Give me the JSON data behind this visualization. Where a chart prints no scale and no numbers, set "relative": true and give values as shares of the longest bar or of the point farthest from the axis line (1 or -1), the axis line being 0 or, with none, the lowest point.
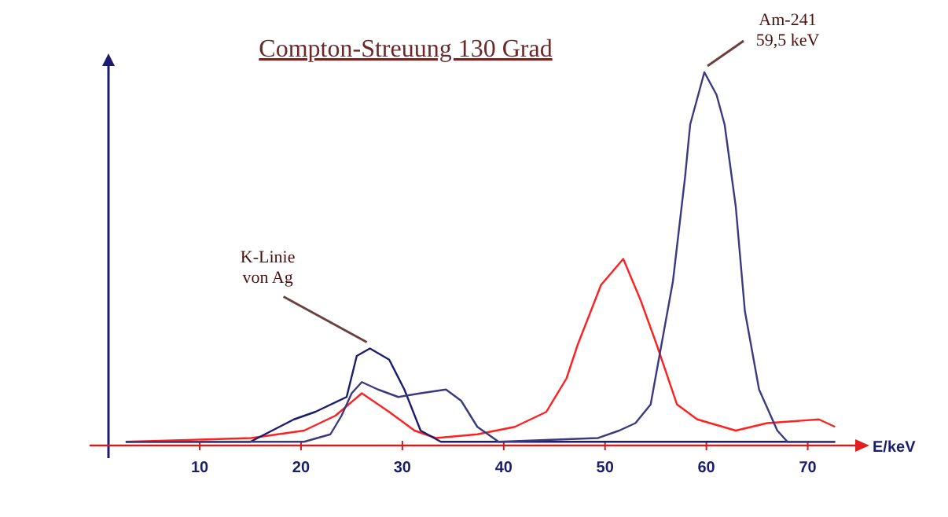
{
  "chart_data": {
    "type": "line",
    "title": "Compton-Streuung 130 Grad",
    "xlabel": "E/keV",
    "relative": true,
    "xlim": [
      1,
      75
    ],
    "xticks": [
      10,
      20,
      30,
      40,
      50,
      60,
      70
    ],
    "annotations": [
      {
        "text": "K-Linie\nvon Ag",
        "x": 26.8,
        "y": 0.26
      },
      {
        "text": "Am-241\n59,5 keV",
        "x": 59.8,
        "y": 1.0
      }
    ],
    "series": [
      {
        "color": "#ff2020",
        "x": [
          2.7,
          15.1,
          20.3,
          23.4,
          26,
          28.7,
          31.2,
          33.3,
          37.4,
          41.1,
          44.2,
          46.2,
          47.3,
          49.6,
          51.8,
          53.5,
          55.1,
          57.1,
          59.1,
          62.9,
          66,
          71.1,
          72.7
        ],
        "values": [
          0.01,
          0.02,
          0.04,
          0.08,
          0.14,
          0.09,
          0.04,
          0.02,
          0.03,
          0.05,
          0.09,
          0.18,
          0.27,
          0.43,
          0.5,
          0.39,
          0.27,
          0.11,
          0.07,
          0.04,
          0.06,
          0.07,
          0.05
        ]
      },
      {
        "color": "#1c1c6e",
        "x": [
          2.7,
          15,
          19.3,
          21.4,
          24.5,
          25.5,
          26.8,
          28.7,
          30.2,
          31.8,
          33.8,
          40,
          55,
          72.7
        ],
        "values": [
          0.01,
          0.01,
          0.07,
          0.09,
          0.13,
          0.24,
          0.26,
          0.23,
          0.15,
          0.04,
          0.01,
          0.01,
          0.01,
          0.01
        ]
      },
      {
        "color": "#3a3a80",
        "x": [
          2.7,
          15,
          20.3,
          22.9,
          24,
          25,
          26,
          27.6,
          29.6,
          31.8,
          34.3,
          35.8,
          37.4,
          39.5,
          49.3,
          51.4,
          53,
          54.5,
          55.3,
          56.7,
          57.9,
          58.4,
          59.8,
          61,
          61.8,
          62.9,
          63.8,
          65.2,
          67,
          68,
          72.7
        ],
        "values": [
          0.01,
          0.01,
          0.01,
          0.03,
          0.08,
          0.14,
          0.17,
          0.15,
          0.13,
          0.14,
          0.15,
          0.12,
          0.05,
          0.01,
          0.02,
          0.04,
          0.06,
          0.11,
          0.23,
          0.44,
          0.72,
          0.86,
          1.0,
          0.94,
          0.86,
          0.64,
          0.36,
          0.15,
          0.04,
          0.01,
          0.01
        ]
      }
    ]
  }
}
